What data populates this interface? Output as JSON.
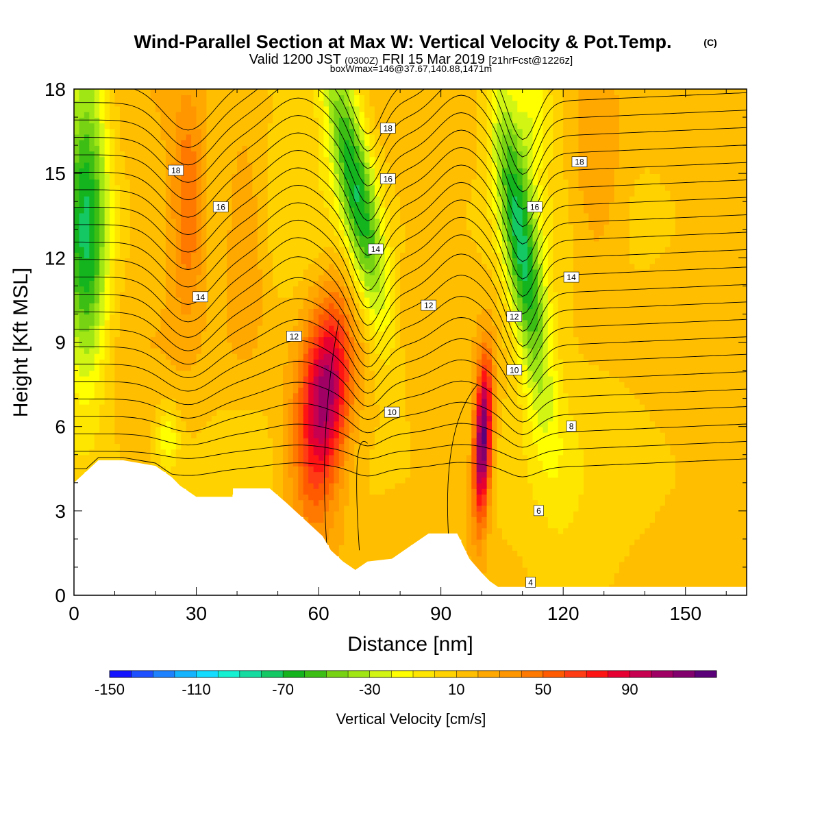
{
  "chart_data": {
    "type": "heatmap",
    "title": "Wind-Parallel Section at Max W: Vertical Velocity & Pot.Temp.",
    "title_mark": "(C)",
    "subtitle": {
      "valid": "Valid 1200 JST",
      "utc": "(0300Z)",
      "date": "FRI 15 Mar 2019",
      "fcst": "[21hrFcst@1226z]"
    },
    "box_note": "boxWmax=146@37.67,140.88,1471m",
    "xlabel": "Distance [nm]",
    "ylabel": "Height [Kft MSL]",
    "xlim": [
      0,
      165
    ],
    "ylim": [
      0,
      18
    ],
    "x_ticks": [
      0,
      30,
      60,
      90,
      120,
      150
    ],
    "y_ticks": [
      0,
      3,
      6,
      9,
      12,
      15,
      18
    ],
    "colorbar": {
      "title": "Vertical Velocity [cm/s]",
      "min": -150,
      "max": 130,
      "labels": [
        -150,
        -110,
        -70,
        -30,
        10,
        50,
        90
      ],
      "colors": [
        "#1414ff",
        "#1e50ff",
        "#1e82ff",
        "#14b4ff",
        "#14dcff",
        "#14f0d2",
        "#14dca0",
        "#14c864",
        "#14b41e",
        "#3cbe14",
        "#78d214",
        "#a0e614",
        "#d2f514",
        "#ffff00",
        "#ffe600",
        "#ffd200",
        "#ffbe00",
        "#ffa800",
        "#ff9600",
        "#ff7800",
        "#ff5a00",
        "#ff3c14",
        "#ff1414",
        "#e60032",
        "#c80050",
        "#a00064",
        "#82006e",
        "#5a0078"
      ]
    },
    "updrafts": [
      {
        "x": 28,
        "z": 13.5,
        "w": 45
      },
      {
        "x": 62,
        "z": 7.5,
        "w": 100
      },
      {
        "x": 100,
        "z": 5.5,
        "w": 125
      }
    ],
    "downdrafts": [
      {
        "x": 3,
        "z": 15,
        "w": -45
      },
      {
        "x": 73,
        "z": 15,
        "w": -70
      },
      {
        "x": 110,
        "z": 12,
        "w": -70
      }
    ],
    "theta_contour_labels": [
      4,
      6,
      8,
      10,
      10,
      12,
      12,
      12,
      14,
      14,
      14,
      16,
      16,
      16,
      18,
      18,
      18
    ],
    "terrain_kft": [
      {
        "x": 0,
        "z": 4.0
      },
      {
        "x": 3,
        "z": 4.4
      },
      {
        "x": 6,
        "z": 4.8
      },
      {
        "x": 12,
        "z": 4.8
      },
      {
        "x": 20,
        "z": 4.6
      },
      {
        "x": 24,
        "z": 4.2
      },
      {
        "x": 26,
        "z": 3.9
      },
      {
        "x": 30,
        "z": 3.5
      },
      {
        "x": 39,
        "z": 3.5
      },
      {
        "x": 39,
        "z": 3.8
      },
      {
        "x": 48,
        "z": 3.8
      },
      {
        "x": 52,
        "z": 3.3
      },
      {
        "x": 55,
        "z": 2.9
      },
      {
        "x": 58,
        "z": 2.5
      },
      {
        "x": 61,
        "z": 2.1
      },
      {
        "x": 63,
        "z": 1.6
      },
      {
        "x": 66,
        "z": 1.2
      },
      {
        "x": 69,
        "z": 0.9
      },
      {
        "x": 72,
        "z": 1.2
      },
      {
        "x": 78,
        "z": 1.3
      },
      {
        "x": 81,
        "z": 1.6
      },
      {
        "x": 84,
        "z": 1.9
      },
      {
        "x": 87,
        "z": 2.2
      },
      {
        "x": 94,
        "z": 2.2
      },
      {
        "x": 97,
        "z": 1.3
      },
      {
        "x": 100,
        "z": 0.8
      },
      {
        "x": 102,
        "z": 0.5
      },
      {
        "x": 104,
        "z": 0.3
      },
      {
        "x": 165,
        "z": 0.3
      }
    ]
  }
}
